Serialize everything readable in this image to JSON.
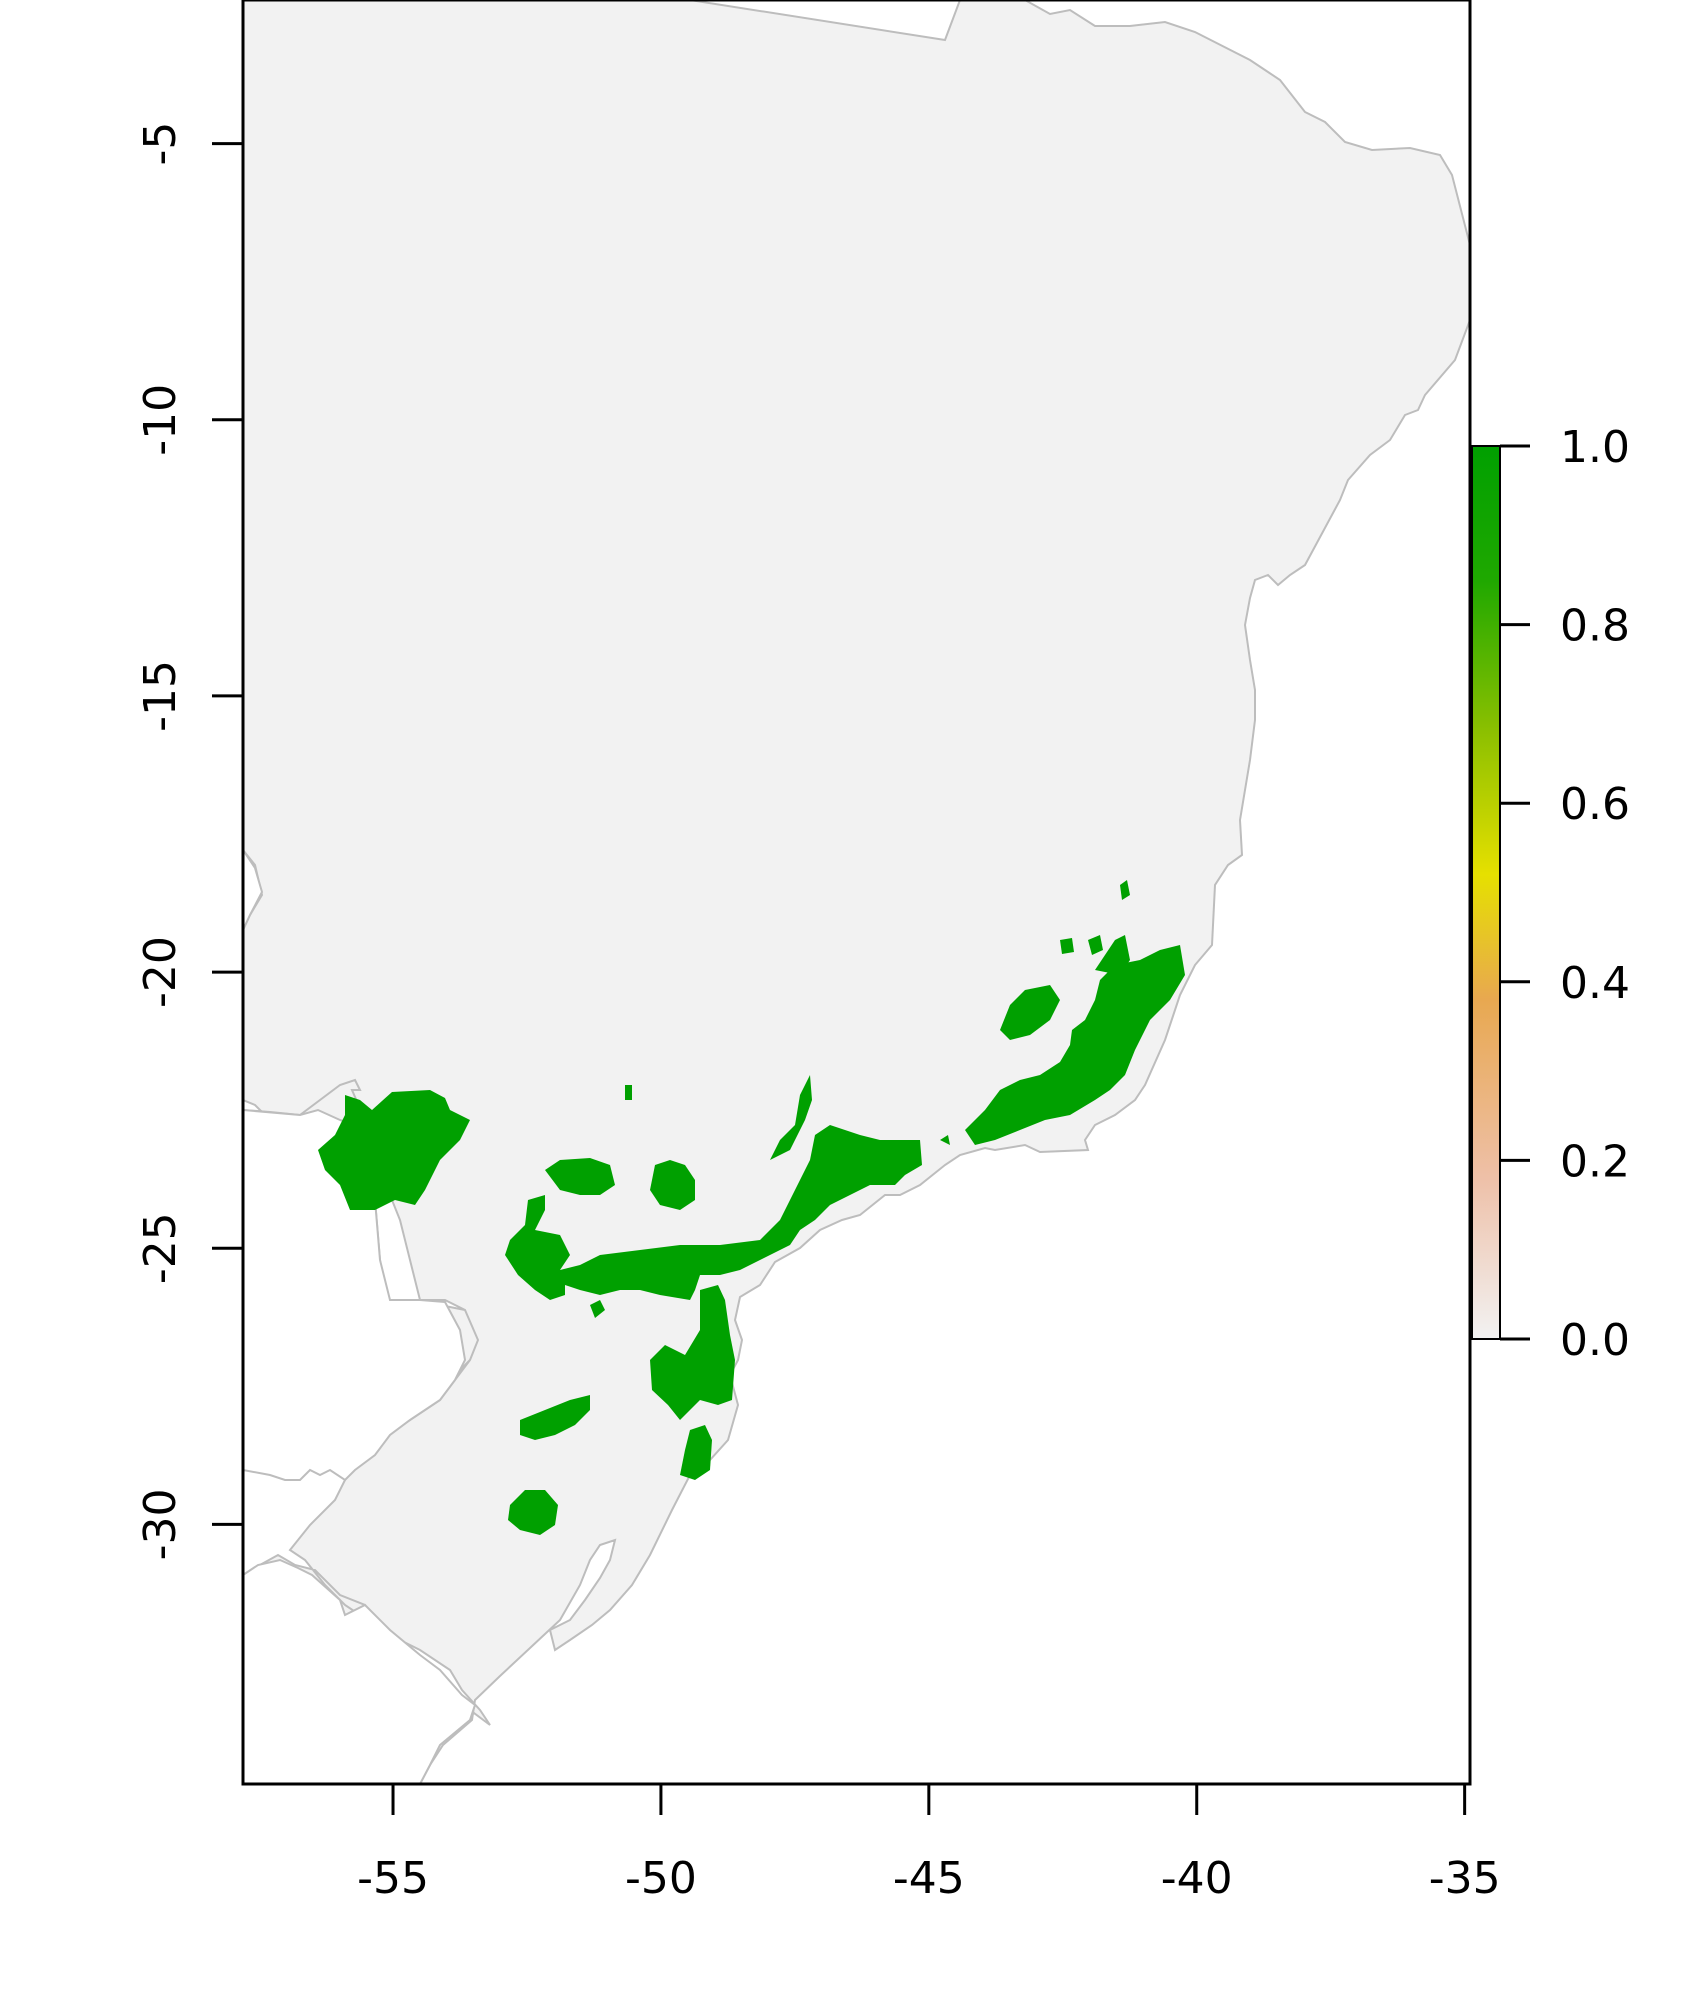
{
  "map": {
    "xaxis": {
      "ticks": [
        -55,
        -50,
        -45,
        -40,
        -35
      ],
      "labels": [
        "-55",
        "-50",
        "-45",
        "-40",
        "-35"
      ]
    },
    "yaxis": {
      "ticks": [
        -5,
        -10,
        -15,
        -20,
        -25,
        -30
      ],
      "labels": [
        "-5",
        "-10",
        "-15",
        "-20",
        "-25",
        "-30"
      ]
    },
    "extent": {
      "lon": [
        -57.8,
        -34.9
      ],
      "lat": [
        -34.7,
        -2.4
      ]
    },
    "background_color": "#f2f2f2",
    "border_color": "#bdbdbd",
    "suitable_color": "#00a000"
  },
  "legend": {
    "ticks": [
      1.0,
      0.8,
      0.6,
      0.4,
      0.2,
      0.0
    ],
    "labels": [
      "1.0",
      "0.8",
      "0.6",
      "0.4",
      "0.2",
      "0.0"
    ],
    "colors": [
      "#00a000",
      "#1fa800",
      "#8cc000",
      "#e6e000",
      "#e8a850",
      "#eec0a8",
      "#f2f2f2"
    ]
  }
}
